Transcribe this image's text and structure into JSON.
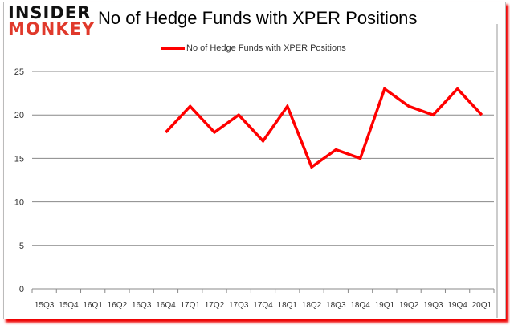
{
  "logo": {
    "line1": "INSIDER",
    "line2": "MONKEY"
  },
  "chart_data": {
    "type": "line",
    "title": "No of Hedge Funds with XPER Positions",
    "xlabel": "",
    "ylabel": "",
    "ylim": [
      0,
      25
    ],
    "yticks": [
      0,
      5,
      10,
      15,
      20,
      25
    ],
    "grid": true,
    "legend_position": "top",
    "categories": [
      "15Q3",
      "15Q4",
      "16Q1",
      "16Q2",
      "16Q3",
      "16Q4",
      "17Q1",
      "17Q2",
      "17Q3",
      "17Q4",
      "18Q1",
      "18Q2",
      "18Q3",
      "18Q4",
      "19Q1",
      "19Q2",
      "19Q3",
      "19Q4",
      "20Q1"
    ],
    "series": [
      {
        "name": "No of Hedge Funds with XPER Positions",
        "color": "#ff0000",
        "values": [
          null,
          null,
          null,
          null,
          null,
          18,
          21,
          18,
          20,
          17,
          21,
          14,
          16,
          15,
          23,
          21,
          20,
          23,
          20
        ]
      }
    ]
  }
}
